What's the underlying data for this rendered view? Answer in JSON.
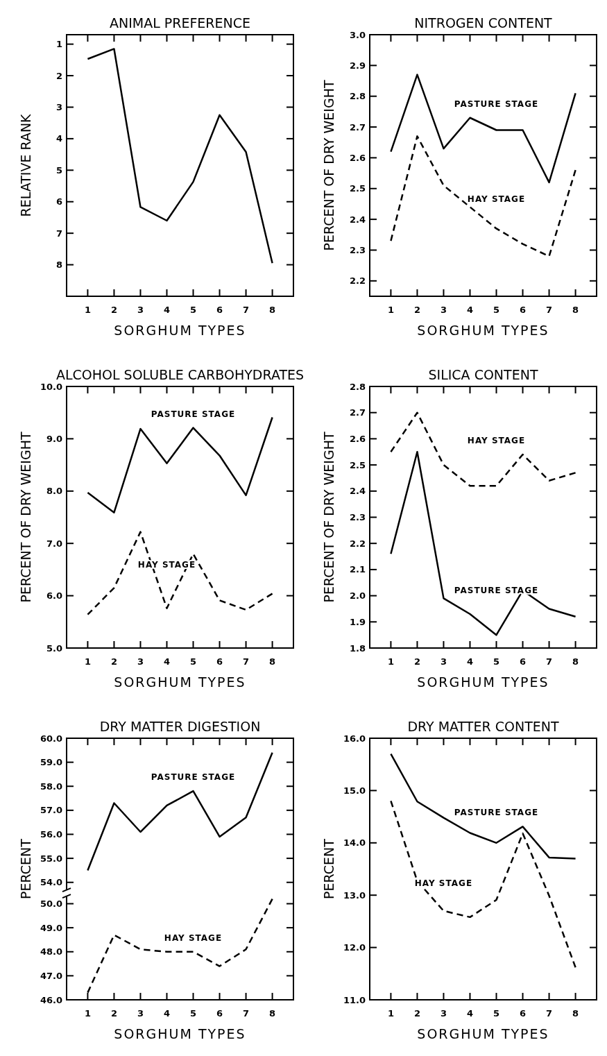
{
  "chart_data": [
    {
      "type": "line",
      "title": "ANIMAL PREFERENCE",
      "xlabel": "SORGHUM TYPES",
      "ylabel": "RELATIVE RANK",
      "categories": [
        "1",
        "2",
        "3",
        "4",
        "5",
        "6",
        "7",
        "8"
      ],
      "ylim": [
        9.0,
        0.7
      ],
      "yticks": [
        1,
        2,
        3,
        4,
        5,
        6,
        7,
        8
      ],
      "grid": false,
      "marker": "none",
      "series": [
        {
          "color": "#000000",
          "line_style": "solid",
          "values": [
            1.47,
            1.15,
            6.17,
            6.6,
            5.37,
            3.25,
            4.42,
            7.95
          ]
        }
      ]
    },
    {
      "type": "line",
      "title": "NITROGEN CONTENT",
      "xlabel": "SORGHUM TYPES",
      "ylabel": "PERCENT OF DRY WEIGHT",
      "categories": [
        "1",
        "2",
        "3",
        "4",
        "5",
        "6",
        "7",
        "8"
      ],
      "ylim": [
        2.15,
        3.0
      ],
      "yticks": [
        2.2,
        2.3,
        2.4,
        2.5,
        2.6,
        2.7,
        2.8,
        2.9,
        {
          "value": 3,
          "label": "3.0"
        }
      ],
      "grid": false,
      "legend": false,
      "marker": "none",
      "series": [
        {
          "name": "PASTURE STAGE",
          "color": "#000000",
          "line_style": "solid",
          "values": [
            2.62,
            2.87,
            2.63,
            2.73,
            2.69,
            2.69,
            2.52,
            2.81
          ]
        },
        {
          "name": "HAY STAGE",
          "color": "#000000",
          "line_style": "dashed",
          "values": [
            2.33,
            2.67,
            2.51,
            2.44,
            2.37,
            2.32,
            2.28,
            2.56
          ]
        }
      ]
    },
    {
      "type": "line",
      "title": "ALCOHOL SOLUBLE CARBOHYDRATES",
      "xlabel": "SORGHUM TYPES",
      "ylabel": "PERCENT OF DRY WEIGHT",
      "categories": [
        "1",
        "2",
        "3",
        "4",
        "5",
        "6",
        "7",
        "8"
      ],
      "ylim": [
        5,
        10
      ],
      "yticks": [
        {
          "value": 5,
          "label": "5.0"
        },
        {
          "value": 6,
          "label": "6.0"
        },
        {
          "value": 7,
          "label": "7.0"
        },
        {
          "value": 8,
          "label": "8.0"
        },
        {
          "value": 9,
          "label": "9.0"
        },
        {
          "value": 10,
          "label": "10.0"
        }
      ],
      "grid": false,
      "legend": false,
      "marker": "none",
      "series": [
        {
          "name": "PASTURE STAGE",
          "color": "#000000",
          "line_style": "solid",
          "values": [
            7.97,
            7.59,
            9.19,
            8.53,
            9.21,
            8.68,
            7.92,
            9.41
          ]
        },
        {
          "name": "HAY STAGE",
          "color": "#000000",
          "line_style": "dashed",
          "values": [
            5.64,
            6.15,
            7.22,
            5.76,
            6.8,
            5.91,
            5.73,
            6.04
          ]
        }
      ]
    },
    {
      "type": "line",
      "title": "SILICA CONTENT",
      "xlabel": "SORGHUM TYPES",
      "ylabel": "PERCENT OF DRY WEIGHT",
      "categories": [
        "1",
        "2",
        "3",
        "4",
        "5",
        "6",
        "7",
        "8"
      ],
      "ylim": [
        1.8,
        2.8
      ],
      "yticks": [
        1.8,
        1.9,
        {
          "value": 2,
          "label": "2.0"
        },
        2.1,
        2.2,
        2.3,
        2.4,
        2.5,
        2.6,
        2.7,
        2.8
      ],
      "grid": false,
      "legend": false,
      "marker": "none",
      "series": [
        {
          "name": "HAY STAGE",
          "color": "#000000",
          "line_style": "dashed",
          "values": [
            2.55,
            2.7,
            2.5,
            2.42,
            2.42,
            2.54,
            2.44,
            2.47
          ]
        },
        {
          "name": "PASTURE STAGE",
          "color": "#000000",
          "line_style": "solid",
          "values": [
            2.16,
            2.55,
            1.99,
            1.93,
            1.85,
            2.02,
            1.95,
            1.92
          ]
        }
      ]
    },
    {
      "type": "line",
      "title": "DRY MATTER DIGESTION",
      "ylabel": "PERCENT",
      "categories": [
        "1",
        "2",
        "3",
        "4",
        "5",
        "6",
        "7",
        "8"
      ],
      "ylim": [
        53.7,
        60
      ],
      "yticks": [
        {
          "value": 54,
          "label": "54.0"
        },
        {
          "value": 55,
          "label": "55.0"
        },
        {
          "value": 56,
          "label": "56.0"
        },
        {
          "value": 57,
          "label": "57.0"
        },
        {
          "value": 58,
          "label": "58.0"
        },
        {
          "value": 59,
          "label": "59.0"
        },
        {
          "value": 60,
          "label": "60.0"
        }
      ],
      "tick_labels": "y",
      "grid": false,
      "legend": false,
      "marker": "none",
      "series": [
        {
          "name": "PASTURE STAGE",
          "color": "#000000",
          "line_style": "solid",
          "values": [
            54.5,
            57.3,
            56.1,
            57.2,
            57.8,
            55.9,
            56.7,
            59.4
          ]
        }
      ]
    },
    {
      "type": "line",
      "xlabel": "SORGHUM TYPES",
      "categories": [
        "1",
        "2",
        "3",
        "4",
        "5",
        "6",
        "7",
        "8"
      ],
      "ylim": [
        46,
        50.3
      ],
      "yticks": [
        {
          "value": 46,
          "label": "46.0"
        },
        {
          "value": 47,
          "label": "47.0"
        },
        {
          "value": 48,
          "label": "48.0"
        },
        {
          "value": 49,
          "label": "49.0"
        },
        {
          "value": 50,
          "label": "50.0"
        }
      ],
      "grid": false,
      "legend": false,
      "marker": "none",
      "series": [
        {
          "name": "HAY STAGE",
          "color": "#000000",
          "line_style": "dashed",
          "values": [
            46.3,
            48.7,
            48.1,
            48.0,
            48.0,
            47.4,
            48.1,
            50.2
          ]
        }
      ]
    },
    {
      "type": "line",
      "title": "DRY MATTER CONTENT",
      "xlabel": "SORGHUM TYPES",
      "ylabel": "PERCENT",
      "categories": [
        "1",
        "2",
        "3",
        "4",
        "5",
        "6",
        "7",
        "8"
      ],
      "ylim": [
        11,
        16
      ],
      "yticks": [
        {
          "value": 11,
          "label": "11.0"
        },
        {
          "value": 12,
          "label": "12.0"
        },
        {
          "value": 13,
          "label": "13.0"
        },
        {
          "value": 14,
          "label": "14.0"
        },
        {
          "value": 15,
          "label": "15.0"
        },
        {
          "value": 16,
          "label": "16.0"
        }
      ],
      "grid": false,
      "legend": false,
      "marker": "none",
      "series": [
        {
          "name": "PASTURE STAGE",
          "color": "#000000",
          "line_style": "solid",
          "values": [
            15.7,
            14.79,
            14.48,
            14.19,
            14.0,
            14.31,
            13.72,
            13.7
          ]
        },
        {
          "name": "HAY STAGE",
          "color": "#000000",
          "line_style": "dashed",
          "values": [
            14.8,
            13.27,
            12.7,
            12.58,
            12.91,
            14.18,
            12.99,
            11.62
          ]
        }
      ]
    }
  ]
}
